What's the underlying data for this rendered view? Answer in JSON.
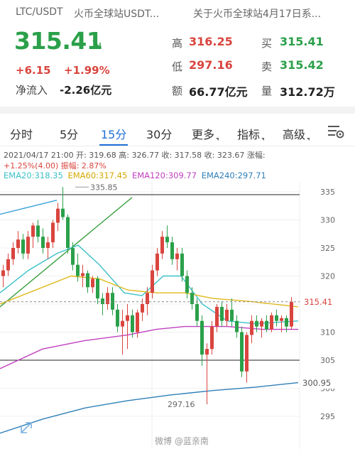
{
  "header": {
    "pair": "LTC/USDT",
    "source": "火币全球站USDT...",
    "news": "关于火币全球站4月17日系..."
  },
  "quote": {
    "price": "315.41",
    "change": "+6.15",
    "change_pct": "+1.99%",
    "net_inflow_label": "净流入",
    "net_inflow_value": "-2.26亿元"
  },
  "stats": {
    "high_label": "高",
    "high_value": "316.25",
    "low_label": "低",
    "low_value": "297.16",
    "amount_label": "额",
    "amount_value": "66.77亿元",
    "buy_label": "买",
    "buy_value": "315.41",
    "sell_label": "卖",
    "sell_value": "315.42",
    "volume_label": "量",
    "volume_value": "312.72万"
  },
  "tabs": [
    {
      "label": "分时"
    },
    {
      "label": "5分"
    },
    {
      "label": "15分"
    },
    {
      "label": "30分"
    },
    {
      "label": "更多"
    },
    {
      "label": "指标"
    },
    {
      "label": "高级"
    }
  ],
  "candle_info": {
    "line1": "2021/04/17 21:00 开: 319.68 高: 326.77 收: 317.58 收: 323.67 涨幅:",
    "line2": "+1.25%(4.00) 振幅: 2.87%"
  },
  "ema": {
    "ema20": "EMA20:318.35",
    "ema60": "EMA60:317.45",
    "ema120": "EMA120:309.77",
    "ema240": "EMA240:297.71"
  },
  "colors": {
    "up": "#d9453e",
    "down": "#2ba04a",
    "accent": "#1f6fd6",
    "ema20": "#3cc0c8",
    "ema60": "#e0b81c",
    "ema120": "#c040c0",
    "ema240": "#2f7fb8"
  },
  "chart_data": {
    "type": "candlestick",
    "y_axis": {
      "min": 292,
      "max": 337,
      "ticks": [
        "335",
        "330",
        "325",
        "320",
        "315",
        "310",
        "305",
        "300",
        "295"
      ]
    },
    "annotations": {
      "high": "335.85",
      "low": "297.16",
      "current_price": "315.41",
      "ema240_price": "300.95"
    },
    "hlines": [
      334.5,
      305
    ],
    "candles": [
      {
        "o": 320,
        "h": 322,
        "l": 318,
        "c": 321
      },
      {
        "o": 321,
        "h": 324,
        "l": 320,
        "c": 323
      },
      {
        "o": 323,
        "h": 326,
        "l": 322,
        "c": 325
      },
      {
        "o": 325,
        "h": 328,
        "l": 324,
        "c": 326.5
      },
      {
        "o": 326.5,
        "h": 327.5,
        "l": 323,
        "c": 324
      },
      {
        "o": 324,
        "h": 328,
        "l": 323,
        "c": 327
      },
      {
        "o": 327,
        "h": 329.5,
        "l": 325,
        "c": 329
      },
      {
        "o": 329,
        "h": 330,
        "l": 326,
        "c": 327
      },
      {
        "o": 327,
        "h": 328.5,
        "l": 324,
        "c": 325
      },
      {
        "o": 325,
        "h": 327,
        "l": 323,
        "c": 326
      },
      {
        "o": 326,
        "h": 330,
        "l": 325,
        "c": 329.5
      },
      {
        "o": 329.5,
        "h": 333,
        "l": 328,
        "c": 332
      },
      {
        "o": 332,
        "h": 335.85,
        "l": 330,
        "c": 330.5
      },
      {
        "o": 330.5,
        "h": 331,
        "l": 324,
        "c": 325
      },
      {
        "o": 325,
        "h": 326,
        "l": 321,
        "c": 322
      },
      {
        "o": 322,
        "h": 324,
        "l": 319,
        "c": 320
      },
      {
        "o": 320,
        "h": 322,
        "l": 318,
        "c": 320.5
      },
      {
        "o": 320.5,
        "h": 321,
        "l": 317,
        "c": 318
      },
      {
        "o": 318,
        "h": 320,
        "l": 317,
        "c": 319.5
      },
      {
        "o": 319.5,
        "h": 320,
        "l": 315,
        "c": 316
      },
      {
        "o": 316,
        "h": 317,
        "l": 313,
        "c": 315
      },
      {
        "o": 315,
        "h": 318,
        "l": 314,
        "c": 317
      },
      {
        "o": 317,
        "h": 318,
        "l": 313,
        "c": 314
      },
      {
        "o": 314,
        "h": 315,
        "l": 310,
        "c": 311
      },
      {
        "o": 311,
        "h": 314,
        "l": 306,
        "c": 312
      },
      {
        "o": 312,
        "h": 315,
        "l": 307,
        "c": 313
      },
      {
        "o": 313,
        "h": 314,
        "l": 309,
        "c": 310
      },
      {
        "o": 310,
        "h": 314,
        "l": 309,
        "c": 313.5
      },
      {
        "o": 313.5,
        "h": 316,
        "l": 312,
        "c": 315
      },
      {
        "o": 315,
        "h": 318,
        "l": 313,
        "c": 317
      },
      {
        "o": 317,
        "h": 322,
        "l": 316,
        "c": 321
      },
      {
        "o": 321,
        "h": 325,
        "l": 320,
        "c": 324
      },
      {
        "o": 324,
        "h": 328,
        "l": 323,
        "c": 327
      },
      {
        "o": 327,
        "h": 329,
        "l": 325,
        "c": 326
      },
      {
        "o": 326,
        "h": 327,
        "l": 322,
        "c": 323
      },
      {
        "o": 323,
        "h": 325,
        "l": 321,
        "c": 324
      },
      {
        "o": 324,
        "h": 325,
        "l": 319,
        "c": 320
      },
      {
        "o": 320,
        "h": 321,
        "l": 316,
        "c": 317
      },
      {
        "o": 317,
        "h": 318,
        "l": 314,
        "c": 315
      },
      {
        "o": 315,
        "h": 316,
        "l": 311,
        "c": 312
      },
      {
        "o": 312,
        "h": 313,
        "l": 304,
        "c": 306
      },
      {
        "o": 306,
        "h": 308,
        "l": 297.16,
        "c": 307
      },
      {
        "o": 307,
        "h": 312,
        "l": 306,
        "c": 311
      },
      {
        "o": 311,
        "h": 315,
        "l": 310,
        "c": 314.5
      },
      {
        "o": 314.5,
        "h": 315.5,
        "l": 311,
        "c": 312
      },
      {
        "o": 312,
        "h": 315,
        "l": 311,
        "c": 314
      },
      {
        "o": 314,
        "h": 316,
        "l": 311,
        "c": 312
      },
      {
        "o": 312,
        "h": 313,
        "l": 309,
        "c": 310
      },
      {
        "o": 310,
        "h": 311,
        "l": 302,
        "c": 303
      },
      {
        "o": 303,
        "h": 310,
        "l": 301,
        "c": 309.5
      },
      {
        "o": 309.5,
        "h": 313,
        "l": 308,
        "c": 312
      },
      {
        "o": 312,
        "h": 313,
        "l": 310,
        "c": 311
      },
      {
        "o": 311,
        "h": 312.5,
        "l": 309,
        "c": 312
      },
      {
        "o": 312,
        "h": 313,
        "l": 310,
        "c": 310.5
      },
      {
        "o": 310.5,
        "h": 313.5,
        "l": 310,
        "c": 313
      },
      {
        "o": 313,
        "h": 314,
        "l": 311,
        "c": 312
      },
      {
        "o": 312,
        "h": 313,
        "l": 310,
        "c": 312.5
      },
      {
        "o": 312.5,
        "h": 313,
        "l": 310,
        "c": 311
      },
      {
        "o": 311,
        "h": 316.25,
        "l": 310.5,
        "c": 315.41
      }
    ]
  },
  "watermark": "微博 @蓝亲南"
}
